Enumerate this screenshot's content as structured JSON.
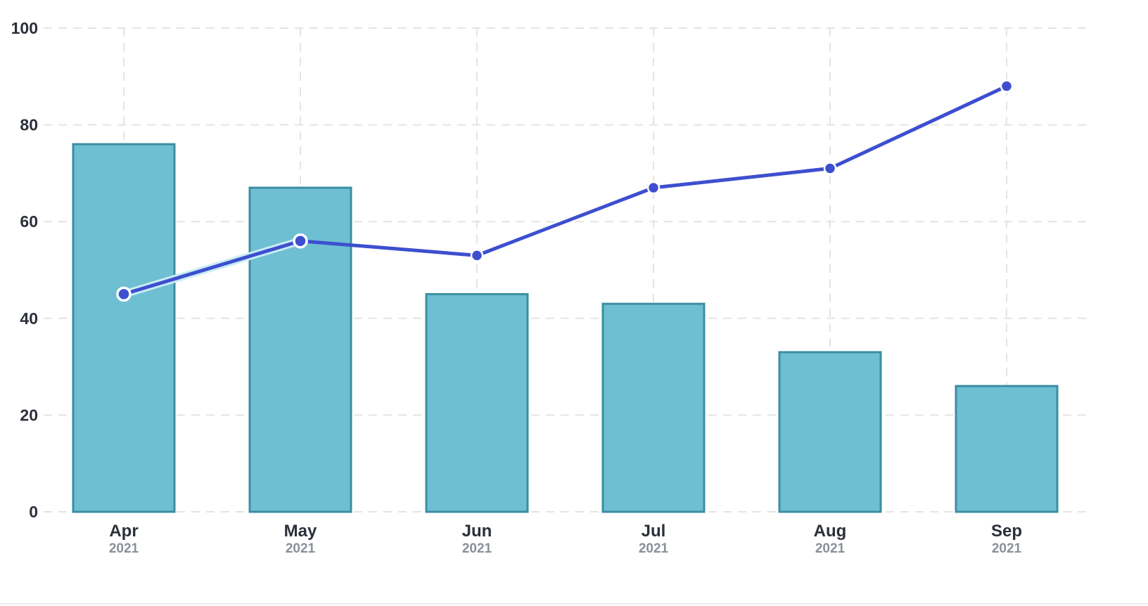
{
  "chart_data": {
    "type": "bar",
    "categories": [
      "Apr",
      "May",
      "Jun",
      "Jul",
      "Aug",
      "Sep"
    ],
    "category_sublabels": [
      "2021",
      "2021",
      "2021",
      "2021",
      "2021",
      "2021"
    ],
    "series": [
      {
        "type": "bar",
        "values": [
          76,
          67,
          45,
          43,
          33,
          26
        ]
      },
      {
        "type": "line",
        "values": [
          45,
          56,
          53,
          67,
          71,
          88
        ]
      }
    ],
    "ylim": [
      0,
      100
    ],
    "yticks": [
      0,
      20,
      40,
      60,
      80,
      100
    ],
    "grid": true,
    "legend": "none",
    "title": "",
    "xlabel": "",
    "ylabel": "",
    "colors": {
      "bar_fill": "#6fbfd3",
      "bar_stroke": "#3a8fa0",
      "line": "#3d4fcf",
      "marker": "#3d4fcf",
      "marker_stroke": "#ffffff",
      "highlight": "#c9ecf4"
    }
  }
}
